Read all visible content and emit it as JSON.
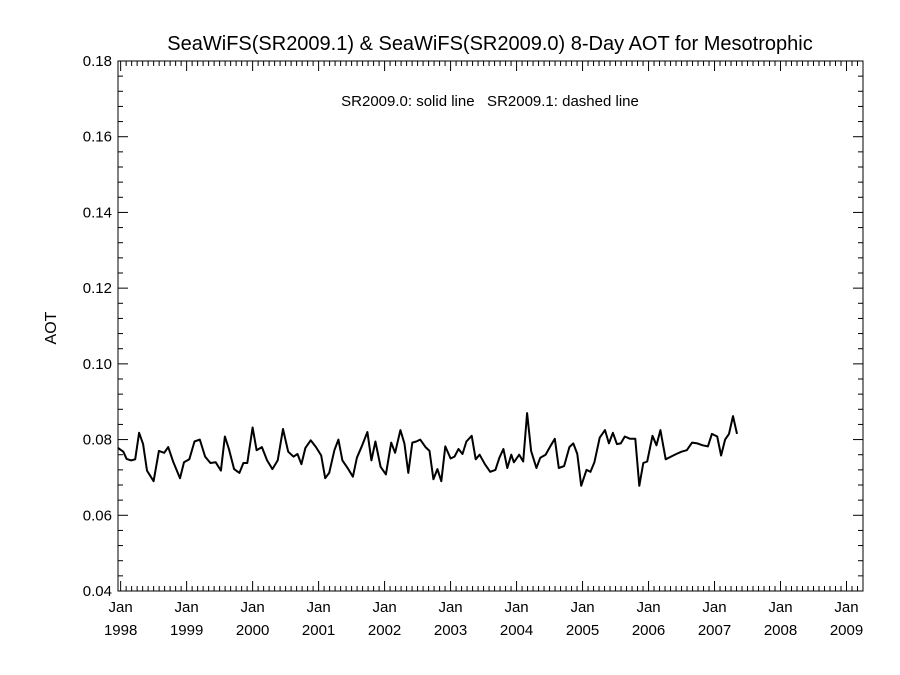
{
  "chart_data": {
    "type": "line",
    "title": "SeaWiFS(SR2009.1) & SeaWiFS(SR2009.0) 8-Day AOT for Mesotrophic",
    "annotation": "SR2009.0: solid line   SR2009.1: dashed line",
    "ylabel": "AOT",
    "xlabel": "",
    "ylim": [
      0.04,
      0.18
    ],
    "xlim": [
      1997.96,
      2009.25
    ],
    "yticks": [
      "0.04",
      "0.06",
      "0.08",
      "0.10",
      "0.12",
      "0.14",
      "0.16",
      "0.18"
    ],
    "xticks": [
      {
        "month": "Jan",
        "year": "1998",
        "x": 1998
      },
      {
        "month": "Jan",
        "year": "1999",
        "x": 1999
      },
      {
        "month": "Jan",
        "year": "2000",
        "x": 2000
      },
      {
        "month": "Jan",
        "year": "2001",
        "x": 2001
      },
      {
        "month": "Jan",
        "year": "2002",
        "x": 2002
      },
      {
        "month": "Jan",
        "year": "2003",
        "x": 2003
      },
      {
        "month": "Jan",
        "year": "2004",
        "x": 2004
      },
      {
        "month": "Jan",
        "year": "2005",
        "x": 2005
      },
      {
        "month": "Jan",
        "year": "2006",
        "x": 2006
      },
      {
        "month": "Jan",
        "year": "2007",
        "x": 2007
      },
      {
        "month": "Jan",
        "year": "2008",
        "x": 2008
      },
      {
        "month": "Jan",
        "year": "2009",
        "x": 2009
      }
    ],
    "grid": false,
    "series": [
      {
        "points": [
          [
            1997.96,
            0.0778
          ],
          [
            1998.04,
            0.0768
          ],
          [
            1998.09,
            0.0749
          ],
          [
            1998.16,
            0.0745
          ],
          [
            1998.22,
            0.0748
          ],
          [
            1998.28,
            0.0818
          ],
          [
            1998.34,
            0.0788
          ],
          [
            1998.4,
            0.0718
          ],
          [
            1998.5,
            0.069
          ],
          [
            1998.58,
            0.077
          ],
          [
            1998.66,
            0.0765
          ],
          [
            1998.72,
            0.078
          ],
          [
            1998.8,
            0.074
          ],
          [
            1998.9,
            0.0698
          ],
          [
            1998.96,
            0.074
          ],
          [
            1999.04,
            0.0748
          ],
          [
            1999.12,
            0.0795
          ],
          [
            1999.2,
            0.08
          ],
          [
            1999.28,
            0.0755
          ],
          [
            1999.36,
            0.0738
          ],
          [
            1999.44,
            0.074
          ],
          [
            1999.52,
            0.0718
          ],
          [
            1999.58,
            0.0808
          ],
          [
            1999.64,
            0.0775
          ],
          [
            1999.72,
            0.0722
          ],
          [
            1999.8,
            0.0712
          ],
          [
            1999.86,
            0.0738
          ],
          [
            1999.92,
            0.0738
          ],
          [
            2000.0,
            0.0832
          ],
          [
            2000.06,
            0.0772
          ],
          [
            2000.14,
            0.078
          ],
          [
            2000.22,
            0.0745
          ],
          [
            2000.3,
            0.0722
          ],
          [
            2000.38,
            0.0745
          ],
          [
            2000.46,
            0.0828
          ],
          [
            2000.54,
            0.0768
          ],
          [
            2000.62,
            0.0755
          ],
          [
            2000.68,
            0.0762
          ],
          [
            2000.74,
            0.0735
          ],
          [
            2000.8,
            0.0778
          ],
          [
            2000.88,
            0.0798
          ],
          [
            2000.96,
            0.078
          ],
          [
            2001.04,
            0.0758
          ],
          [
            2001.1,
            0.0698
          ],
          [
            2001.16,
            0.0712
          ],
          [
            2001.24,
            0.0772
          ],
          [
            2001.3,
            0.08
          ],
          [
            2001.36,
            0.0745
          ],
          [
            2001.44,
            0.0725
          ],
          [
            2001.52,
            0.0702
          ],
          [
            2001.58,
            0.0752
          ],
          [
            2001.66,
            0.0785
          ],
          [
            2001.74,
            0.082
          ],
          [
            2001.8,
            0.0745
          ],
          [
            2001.86,
            0.0795
          ],
          [
            2001.94,
            0.0728
          ],
          [
            2002.02,
            0.0708
          ],
          [
            2002.1,
            0.0792
          ],
          [
            2002.16,
            0.0765
          ],
          [
            2002.24,
            0.0825
          ],
          [
            2002.3,
            0.079
          ],
          [
            2002.36,
            0.0712
          ],
          [
            2002.42,
            0.0792
          ],
          [
            2002.48,
            0.0795
          ],
          [
            2002.54,
            0.08
          ],
          [
            2002.62,
            0.078
          ],
          [
            2002.68,
            0.077
          ],
          [
            2002.74,
            0.0695
          ],
          [
            2002.8,
            0.0722
          ],
          [
            2002.86,
            0.069
          ],
          [
            2002.92,
            0.0782
          ],
          [
            2003.0,
            0.075
          ],
          [
            2003.06,
            0.0755
          ],
          [
            2003.12,
            0.0775
          ],
          [
            2003.18,
            0.0762
          ],
          [
            2003.24,
            0.0795
          ],
          [
            2003.32,
            0.081
          ],
          [
            2003.38,
            0.0748
          ],
          [
            2003.44,
            0.076
          ],
          [
            2003.52,
            0.0735
          ],
          [
            2003.6,
            0.0715
          ],
          [
            2003.68,
            0.072
          ],
          [
            2003.74,
            0.0752
          ],
          [
            2003.8,
            0.0775
          ],
          [
            2003.86,
            0.0725
          ],
          [
            2003.92,
            0.076
          ],
          [
            2003.96,
            0.074
          ],
          [
            2004.04,
            0.076
          ],
          [
            2004.1,
            0.0742
          ],
          [
            2004.16,
            0.087
          ],
          [
            2004.22,
            0.077
          ],
          [
            2004.3,
            0.0725
          ],
          [
            2004.36,
            0.0752
          ],
          [
            2004.44,
            0.076
          ],
          [
            2004.52,
            0.0785
          ],
          [
            2004.58,
            0.0802
          ],
          [
            2004.64,
            0.0725
          ],
          [
            2004.72,
            0.073
          ],
          [
            2004.8,
            0.078
          ],
          [
            2004.86,
            0.079
          ],
          [
            2004.92,
            0.0762
          ],
          [
            2004.98,
            0.0678
          ],
          [
            2005.06,
            0.072
          ],
          [
            2005.12,
            0.0715
          ],
          [
            2005.18,
            0.074
          ],
          [
            2005.26,
            0.0805
          ],
          [
            2005.34,
            0.0825
          ],
          [
            2005.4,
            0.079
          ],
          [
            2005.46,
            0.0818
          ],
          [
            2005.52,
            0.0788
          ],
          [
            2005.58,
            0.079
          ],
          [
            2005.64,
            0.0808
          ],
          [
            2005.72,
            0.0802
          ],
          [
            2005.8,
            0.0802
          ],
          [
            2005.86,
            0.0678
          ],
          [
            2005.92,
            0.0738
          ],
          [
            2005.98,
            0.0742
          ],
          [
            2006.06,
            0.081
          ],
          [
            2006.12,
            0.0785
          ],
          [
            2006.18,
            0.0825
          ],
          [
            2006.26,
            0.0748
          ],
          [
            2006.34,
            0.0755
          ],
          [
            2006.42,
            0.0762
          ],
          [
            2006.5,
            0.0768
          ],
          [
            2006.58,
            0.0772
          ],
          [
            2006.66,
            0.0792
          ],
          [
            2006.74,
            0.079
          ],
          [
            2006.82,
            0.0785
          ],
          [
            2006.9,
            0.0782
          ],
          [
            2006.96,
            0.0815
          ],
          [
            2007.04,
            0.0808
          ],
          [
            2007.1,
            0.0758
          ],
          [
            2007.16,
            0.08
          ],
          [
            2007.22,
            0.0815
          ],
          [
            2007.28,
            0.0862
          ],
          [
            2007.34,
            0.0815
          ]
        ]
      }
    ]
  }
}
